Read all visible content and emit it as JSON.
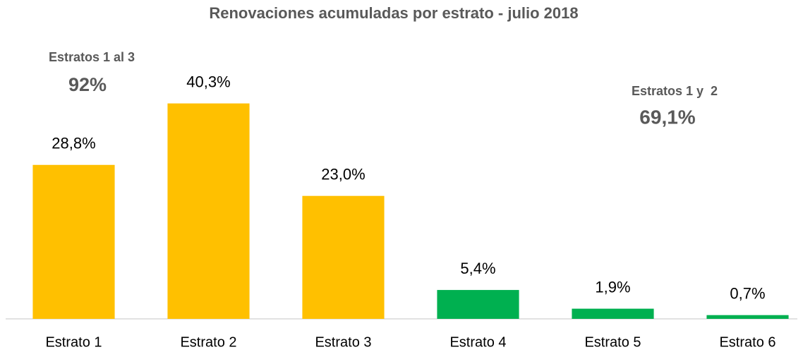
{
  "chart_data": {
    "type": "bar",
    "title": "Renovaciones acumuladas por estrato - julio 2018",
    "categories": [
      "Estrato 1",
      "Estrato 2",
      "Estrato 3",
      "Estrato 4",
      "Estrato 5",
      "Estrato 6"
    ],
    "values": [
      28.8,
      40.3,
      23.0,
      5.4,
      1.9,
      0.7
    ],
    "value_labels": [
      "28,8%",
      "40,3%",
      "23,0%",
      "5,4%",
      "1,9%",
      "0,7%"
    ],
    "colors": [
      "#FFC000",
      "#FFC000",
      "#FFC000",
      "#00B050",
      "#00B050",
      "#00B050"
    ],
    "ylim": [
      0,
      45
    ],
    "annotations": [
      {
        "title": "Estratos 1 al 3",
        "value": "92%"
      },
      {
        "title": "Estratos 1 y  2",
        "value": "69,1%"
      }
    ]
  }
}
